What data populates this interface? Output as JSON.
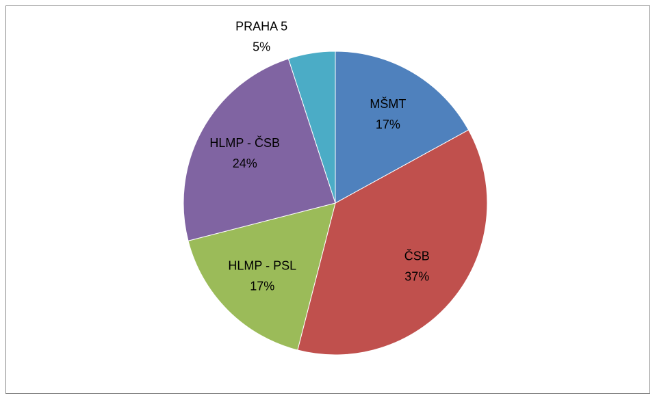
{
  "chart_data": {
    "type": "pie",
    "categories": [
      "MŠMT",
      "ČSB",
      "HLMP - PSL",
      "HLMP - ČSB",
      "PRAHA 5"
    ],
    "values": [
      17,
      37,
      17,
      24,
      5
    ],
    "value_labels": [
      "17%",
      "37%",
      "17%",
      "24%",
      "5%"
    ],
    "colors": [
      "#4F81BD",
      "#C0504D",
      "#9BBB59",
      "#8064A2",
      "#4BACC6"
    ]
  }
}
